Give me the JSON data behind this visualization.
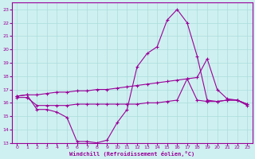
{
  "xlabel": "Windchill (Refroidissement éolien,°C)",
  "bg_color": "#cff0f0",
  "grid_color": "#aadddd",
  "line_color": "#990099",
  "x_ticks": [
    0,
    1,
    2,
    3,
    4,
    5,
    6,
    7,
    8,
    9,
    10,
    11,
    12,
    13,
    14,
    15,
    16,
    17,
    18,
    19,
    20,
    21,
    22,
    23
  ],
  "y_ticks": [
    13,
    14,
    15,
    16,
    17,
    18,
    19,
    20,
    21,
    22,
    23
  ],
  "ylim": [
    13,
    23.5
  ],
  "xlim": [
    -0.5,
    23.5
  ],
  "line1_x": [
    0,
    1,
    2,
    3,
    4,
    5,
    6,
    7,
    8,
    9,
    10,
    11,
    12,
    13,
    14,
    15,
    16,
    17,
    18,
    19,
    20,
    21,
    22,
    23
  ],
  "line1_y": [
    16.5,
    16.6,
    15.5,
    15.5,
    15.3,
    14.9,
    13.1,
    13.1,
    13.0,
    13.2,
    14.5,
    15.5,
    18.7,
    19.7,
    20.2,
    22.2,
    23.0,
    22.0,
    19.5,
    16.2,
    16.1,
    16.2,
    16.2,
    15.9
  ],
  "line2_x": [
    0,
    1,
    2,
    3,
    4,
    5,
    6,
    7,
    8,
    9,
    10,
    11,
    12,
    13,
    14,
    15,
    16,
    17,
    18,
    19,
    20,
    21,
    22,
    23
  ],
  "line2_y": [
    16.5,
    16.6,
    16.6,
    16.7,
    16.8,
    16.8,
    16.9,
    16.9,
    17.0,
    17.0,
    17.1,
    17.2,
    17.3,
    17.4,
    17.5,
    17.6,
    17.7,
    17.8,
    17.9,
    19.3,
    17.0,
    16.3,
    16.2,
    15.9
  ],
  "line3_x": [
    0,
    1,
    2,
    3,
    4,
    5,
    6,
    7,
    8,
    9,
    10,
    11,
    12,
    13,
    14,
    15,
    16,
    17,
    18,
    19,
    20,
    21,
    22,
    23
  ],
  "line3_y": [
    16.4,
    16.4,
    15.8,
    15.8,
    15.8,
    15.8,
    15.9,
    15.9,
    15.9,
    15.9,
    15.9,
    15.9,
    15.9,
    16.0,
    16.0,
    16.1,
    16.2,
    17.8,
    16.2,
    16.1,
    16.1,
    16.2,
    16.2,
    15.8
  ]
}
